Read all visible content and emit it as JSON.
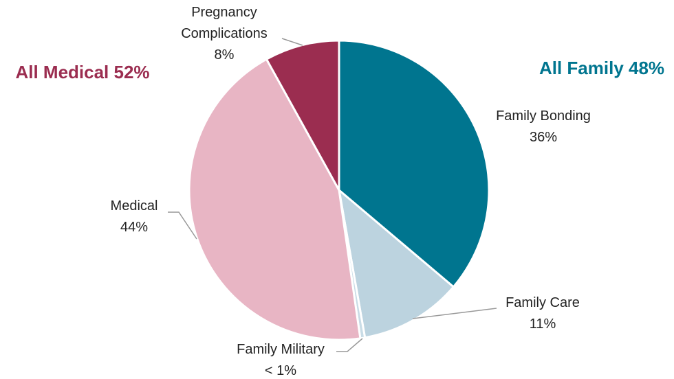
{
  "chart_data": {
    "type": "pie",
    "categories": [
      "Family Bonding",
      "Family Care",
      "Family Military",
      "Medical",
      "Pregnancy Complications"
    ],
    "values": [
      36,
      11,
      0.5,
      44,
      8
    ],
    "value_labels": [
      "36%",
      "11%",
      "< 1%",
      "44%",
      "8%"
    ],
    "colors": [
      "#00758f",
      "#bcd3df",
      "#c9dce6",
      "#e8b5c4",
      "#9b2d50"
    ],
    "annotations": [
      {
        "text": "All Medical 52%",
        "color": "#9b2d50"
      },
      {
        "text": "All Family 48%",
        "color": "#00758f"
      }
    ]
  }
}
